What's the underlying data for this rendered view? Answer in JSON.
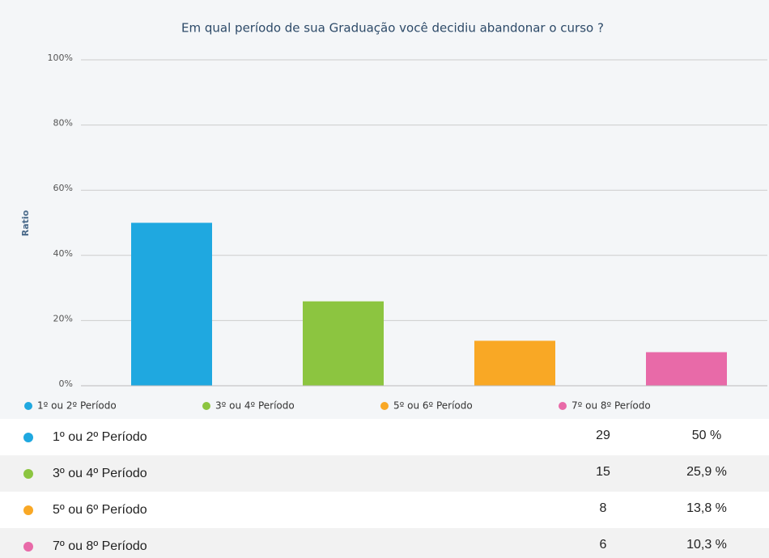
{
  "chart_data": {
    "type": "bar",
    "title": "Em qual período de sua Graduação você decidiu abandonar o curso ?",
    "y_label": "Ratio",
    "categories": [
      "1º ou 2º Período",
      "3º ou 4º Período",
      "5º ou 6º Período",
      "7º ou 8º Período"
    ],
    "values": [
      50,
      25.9,
      13.8,
      10.3
    ],
    "value_labels": [
      "50 %",
      "25,9 %",
      "13,8 %",
      "10,3 %"
    ],
    "colors": [
      "#1fa8e0",
      "#8cc540",
      "#f9a825",
      "#e86aa8"
    ],
    "ylim": [
      0,
      100
    ],
    "yticks": [
      {
        "value": 0,
        "label": "0%"
      },
      {
        "value": 20,
        "label": "20%"
      },
      {
        "value": 40,
        "label": "40%"
      },
      {
        "value": 60,
        "label": "60%"
      },
      {
        "value": 80,
        "label": "80%"
      },
      {
        "value": 100,
        "label": "100%"
      }
    ],
    "grid": true
  },
  "table": {
    "counts": [
      29,
      15,
      8,
      6
    ]
  }
}
